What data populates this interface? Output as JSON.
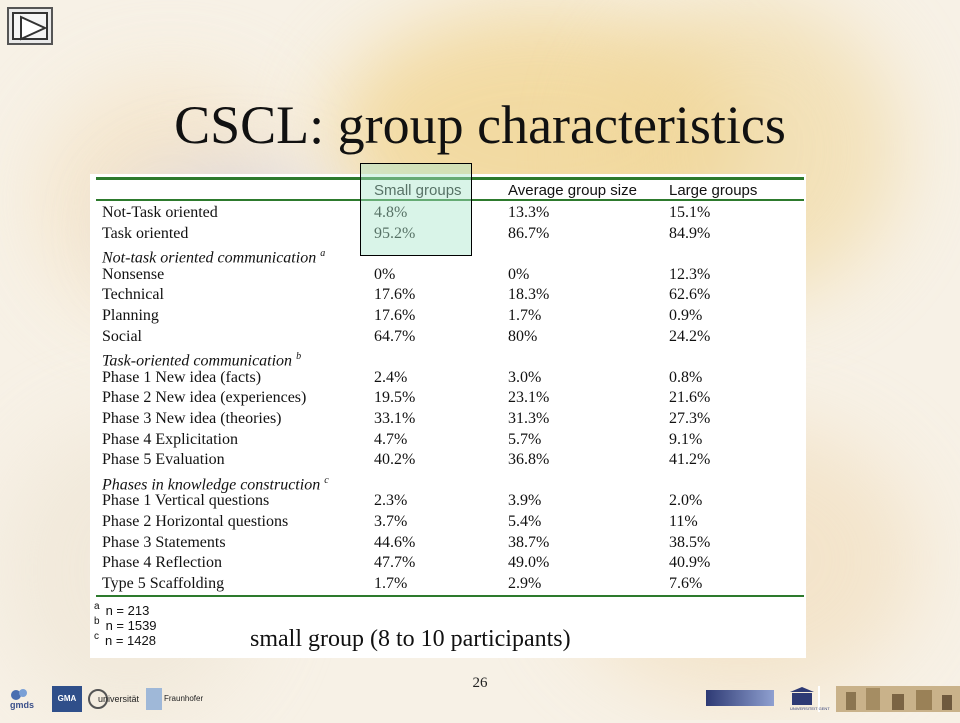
{
  "slide": {
    "title": "CSCL: group characteristics",
    "caption": "small group (8 to 10 participants)",
    "page_number": "26"
  },
  "table": {
    "headers": [
      "",
      "Small groups",
      "Average group size",
      "Large groups"
    ],
    "rows": [
      {
        "kind": "data",
        "label": "Not-Task oriented",
        "v": [
          "4.8%",
          "13.3%",
          "15.1%"
        ]
      },
      {
        "kind": "data",
        "label": "Task oriented",
        "v": [
          "95.2%",
          "86.7%",
          "84.9%"
        ]
      },
      {
        "kind": "section",
        "label": "Not-task oriented communication",
        "sup": "a"
      },
      {
        "kind": "data",
        "label": "Nonsense",
        "v": [
          "0%",
          "0%",
          "12.3%"
        ]
      },
      {
        "kind": "data",
        "label": "Technical",
        "v": [
          "17.6%",
          "18.3%",
          "62.6%"
        ]
      },
      {
        "kind": "data",
        "label": "Planning",
        "v": [
          "17.6%",
          "1.7%",
          "0.9%"
        ]
      },
      {
        "kind": "data",
        "label": "Social",
        "v": [
          "64.7%",
          "80%",
          "24.2%"
        ]
      },
      {
        "kind": "section",
        "label": "Task-oriented communication",
        "sup": "b"
      },
      {
        "kind": "data",
        "label": "Phase 1 New idea (facts)",
        "v": [
          "2.4%",
          "3.0%",
          "0.8%"
        ]
      },
      {
        "kind": "data",
        "label": "Phase 2 New idea (experiences)",
        "v": [
          "19.5%",
          "23.1%",
          "21.6%"
        ]
      },
      {
        "kind": "data",
        "label": "Phase 3 New idea  (theories)",
        "v": [
          "33.1%",
          "31.3%",
          "27.3%"
        ]
      },
      {
        "kind": "data",
        "label": "Phase 4 Explicitation",
        "v": [
          "4.7%",
          "5.7%",
          "9.1%"
        ]
      },
      {
        "kind": "data",
        "label": "Phase 5 Evaluation",
        "v": [
          "40.2%",
          "36.8%",
          "41.2%"
        ]
      },
      {
        "kind": "section",
        "label": "Phases in knowledge construction",
        "sup": "c"
      },
      {
        "kind": "data",
        "label": "Phase 1 Vertical questions",
        "v": [
          "2.3%",
          "3.9%",
          "2.0%"
        ]
      },
      {
        "kind": "data",
        "label": "Phase 2 Horizontal questions",
        "v": [
          "3.7%",
          "5.4%",
          "11%"
        ]
      },
      {
        "kind": "data",
        "label": "Phase 3 Statements",
        "v": [
          "44.6%",
          "38.7%",
          "38.5%"
        ]
      },
      {
        "kind": "data",
        "label": "Phase 4 Reflection",
        "v": [
          "47.7%",
          "49.0%",
          "40.9%"
        ]
      },
      {
        "kind": "data",
        "label": "Type 5 Scaffolding",
        "v": [
          "1.7%",
          "2.9%",
          "7.6%"
        ]
      }
    ],
    "notes": [
      {
        "sup": "a",
        "text": "n = 213"
      },
      {
        "sup": "b",
        "text": "n = 1539"
      },
      {
        "sup": "c",
        "text": "n = 1428"
      }
    ]
  },
  "footer_logos": [
    "gmds",
    "GMA",
    "universität",
    "Fraunhofer"
  ],
  "footer_right_logo": "UNIVERSITEIT GENT",
  "colors": {
    "table_rule": "#2d7a2d",
    "highlight": "#aae6cd"
  }
}
